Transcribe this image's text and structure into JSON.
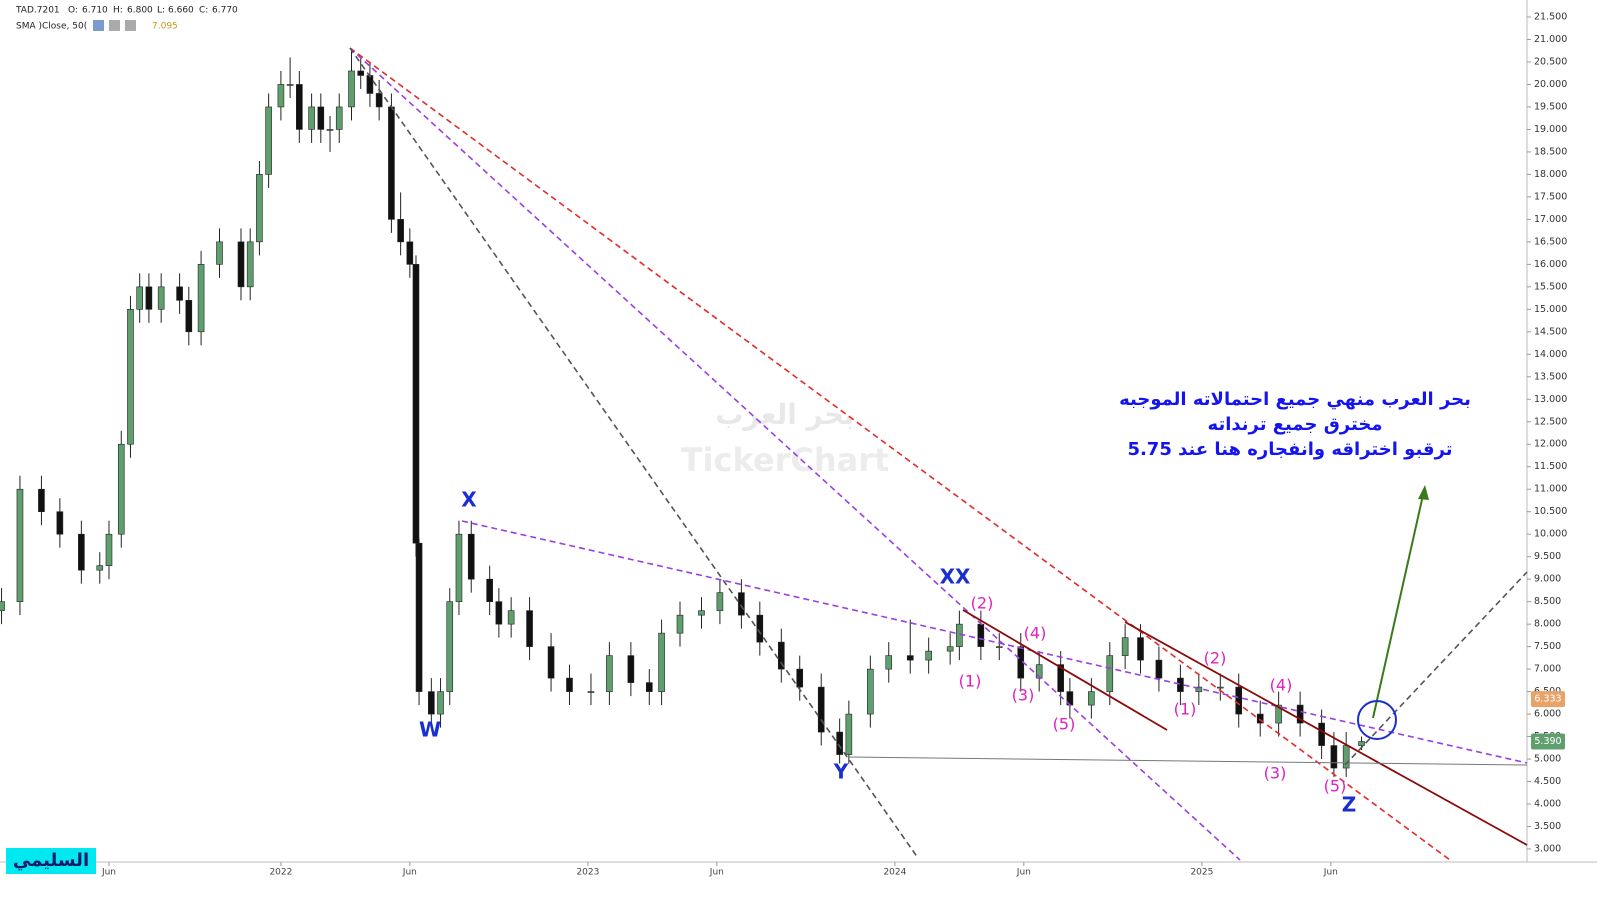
{
  "chart_data": {
    "type": "candlestick",
    "symbol": "TAD.7201",
    "ohlc_header": [
      {
        "label": "O:",
        "value": "6.710"
      },
      {
        "label": "H:",
        "value": "6.800"
      },
      {
        "label": "L:",
        "value": "6.660"
      },
      {
        "label": "C:",
        "value": "6.770"
      }
    ],
    "indicator": {
      "name": "SMA )Close, 50(",
      "value": "7.095"
    },
    "watermark": [
      "بحر العرب",
      "TickerChart"
    ],
    "signature": "السليمي",
    "up_color": "#5f9f6e",
    "down_color": "#111111",
    "xlim": [
      2021.085,
      2026.059
    ],
    "ylim": [
      3.0,
      21.5
    ],
    "xticks": [
      {
        "value": 2021.44,
        "label": "Jun"
      },
      2022,
      {
        "value": 2022.42,
        "label": "Jun"
      },
      2023,
      {
        "value": 2023.42,
        "label": "Jun"
      },
      2024,
      {
        "value": 2024.42,
        "label": "Jun"
      },
      2025,
      {
        "value": 2025.42,
        "label": "Jun"
      }
    ],
    "yticks": [
      {
        "value": 3.0,
        "label": "3.000"
      },
      {
        "value": 3.5,
        "label": "3.500"
      },
      {
        "value": 4.0,
        "label": "4.000"
      },
      {
        "value": 4.5,
        "label": "4.500"
      },
      {
        "value": 5.0,
        "label": "5.000"
      },
      {
        "value": 5.5,
        "label": "5.500"
      },
      {
        "value": 6.0,
        "label": "6.000"
      },
      {
        "value": 6.5,
        "label": "6.500"
      },
      {
        "value": 7.0,
        "label": "7.000"
      },
      {
        "value": 7.5,
        "label": "7.500"
      },
      {
        "value": 8.0,
        "label": "8.000"
      },
      {
        "value": 8.5,
        "label": "8.500"
      },
      {
        "value": 9.0,
        "label": "9.000"
      },
      {
        "value": 9.5,
        "label": "9.500"
      },
      {
        "value": 10.0,
        "label": "10.000"
      },
      {
        "value": 10.5,
        "label": "10.500"
      },
      {
        "value": 11.0,
        "label": "11.000"
      },
      {
        "value": 11.5,
        "label": "11.500"
      },
      {
        "value": 12.0,
        "label": "12.000"
      },
      {
        "value": 12.5,
        "label": "12.500"
      },
      {
        "value": 13.0,
        "label": "13.000"
      },
      {
        "value": 13.5,
        "label": "13.500"
      },
      {
        "value": 14.0,
        "label": "14.000"
      },
      {
        "value": 14.5,
        "label": "14.500"
      },
      {
        "value": 15.0,
        "label": "15.000"
      },
      {
        "value": 15.5,
        "label": "15.500"
      },
      {
        "value": 16.0,
        "label": "16.000"
      },
      {
        "value": 16.5,
        "label": "16.500"
      },
      {
        "value": 17.0,
        "label": "17.000"
      },
      {
        "value": 17.5,
        "label": "17.500"
      },
      {
        "value": 18.0,
        "label": "18.000"
      },
      {
        "value": 18.5,
        "label": "18.500"
      },
      {
        "value": 19.0,
        "label": "19.000"
      },
      {
        "value": 19.5,
        "label": "19.500"
      },
      {
        "value": 20.0,
        "label": "20.000"
      },
      {
        "value": 20.5,
        "label": "20.500"
      },
      {
        "value": 21.0,
        "label": "21.000"
      },
      {
        "value": 21.5,
        "label": "21.500"
      }
    ],
    "price_tags": [
      {
        "value": 6.333,
        "label": "6.333",
        "color": "#e8a36a"
      },
      {
        "value": 5.39,
        "label": "5.390",
        "color": "#5f9f6e"
      }
    ],
    "candles": [
      [
        2021.09,
        8.3,
        8.8,
        8.0,
        8.5
      ],
      [
        2021.15,
        8.5,
        11.3,
        8.2,
        11
      ],
      [
        2021.22,
        11,
        11.3,
        10.2,
        10.5
      ],
      [
        2021.28,
        10.5,
        10.8,
        9.7,
        10
      ],
      [
        2021.35,
        10,
        10.3,
        8.9,
        9.2
      ],
      [
        2021.41,
        9.2,
        9.6,
        8.9,
        9.3
      ],
      [
        2021.44,
        9.3,
        10.3,
        9.0,
        10
      ],
      [
        2021.48,
        10,
        12.3,
        9.7,
        12
      ],
      [
        2021.51,
        12,
        15.3,
        11.7,
        15
      ],
      [
        2021.54,
        15,
        15.8,
        14.7,
        15.5
      ],
      [
        2021.57,
        15.5,
        15.8,
        14.7,
        15
      ],
      [
        2021.61,
        15,
        15.8,
        14.7,
        15.5
      ],
      [
        2021.67,
        15.5,
        15.8,
        14.9,
        15.2
      ],
      [
        2021.7,
        15.2,
        15.5,
        14.2,
        14.5
      ],
      [
        2021.74,
        14.5,
        16.3,
        14.2,
        16
      ],
      [
        2021.8,
        16,
        16.8,
        15.7,
        16.5
      ],
      [
        2021.87,
        16.5,
        16.8,
        15.2,
        15.5
      ],
      [
        2021.9,
        15.5,
        16.8,
        15.2,
        16.5
      ],
      [
        2021.93,
        16.5,
        18.3,
        16.2,
        18
      ],
      [
        2021.96,
        18,
        19.8,
        17.7,
        19.5
      ],
      [
        2022.0,
        19.5,
        20.3,
        19.2,
        20
      ],
      [
        2022.03,
        20,
        20.6,
        19.7,
        20
      ],
      [
        2022.06,
        20,
        20.3,
        18.7,
        19
      ],
      [
        2022.1,
        19,
        19.8,
        18.7,
        19.5
      ],
      [
        2022.13,
        19.5,
        19.8,
        18.7,
        19
      ],
      [
        2022.16,
        19,
        19.3,
        18.5,
        19
      ],
      [
        2022.19,
        19,
        19.8,
        18.7,
        19.5
      ],
      [
        2022.23,
        19.5,
        20.8,
        19.2,
        20.3
      ],
      [
        2022.26,
        20.3,
        20.6,
        19.9,
        20.2
      ],
      [
        2022.29,
        20.2,
        20.5,
        19.5,
        19.8
      ],
      [
        2022.32,
        19.8,
        20.1,
        19.2,
        19.5
      ],
      [
        2022.36,
        19.5,
        19.8,
        16.7,
        17
      ],
      [
        2022.39,
        17,
        17.6,
        16.2,
        16.5
      ],
      [
        2022.42,
        16.5,
        16.8,
        15.7,
        16
      ],
      [
        2022.44,
        16,
        16.2,
        9.5,
        9.8
      ],
      [
        2022.45,
        9.8,
        9.9,
        6.2,
        6.5
      ],
      [
        2022.49,
        6.5,
        6.8,
        5.7,
        6
      ],
      [
        2022.52,
        6,
        6.8,
        5.7,
        6.5
      ],
      [
        2022.55,
        6.5,
        8.8,
        6.2,
        8.5
      ],
      [
        2022.58,
        8.5,
        10.3,
        8.2,
        10
      ],
      [
        2022.62,
        10,
        10.3,
        8.7,
        9
      ],
      [
        2022.68,
        9,
        9.3,
        8.2,
        8.5
      ],
      [
        2022.71,
        8.5,
        8.8,
        7.7,
        8
      ],
      [
        2022.75,
        8,
        8.6,
        7.7,
        8.3
      ],
      [
        2022.81,
        8.3,
        8.6,
        7.2,
        7.5
      ],
      [
        2022.88,
        7.5,
        7.8,
        6.5,
        6.8
      ],
      [
        2022.94,
        6.8,
        7.1,
        6.2,
        6.5
      ],
      [
        2023.01,
        6.5,
        6.9,
        6.2,
        6.5
      ],
      [
        2023.07,
        6.5,
        7.6,
        6.2,
        7.3
      ],
      [
        2023.14,
        7.3,
        7.6,
        6.4,
        6.7
      ],
      [
        2023.2,
        6.7,
        7.0,
        6.2,
        6.5
      ],
      [
        2023.24,
        6.5,
        8.1,
        6.2,
        7.8
      ],
      [
        2023.3,
        7.8,
        8.5,
        7.5,
        8.2
      ],
      [
        2023.37,
        8.2,
        8.6,
        7.9,
        8.3
      ],
      [
        2023.43,
        8.3,
        9.0,
        8.0,
        8.7
      ],
      [
        2023.5,
        8.7,
        9.0,
        7.9,
        8.2
      ],
      [
        2023.56,
        8.2,
        8.5,
        7.3,
        7.6
      ],
      [
        2023.63,
        7.6,
        7.9,
        6.7,
        7
      ],
      [
        2023.69,
        7,
        7.3,
        6.3,
        6.6
      ],
      [
        2023.76,
        6.6,
        6.9,
        5.3,
        5.6
      ],
      [
        2023.82,
        5.6,
        5.9,
        4.9,
        5.1
      ],
      [
        2023.85,
        5.1,
        6.3,
        4.9,
        6
      ],
      [
        2023.92,
        6,
        7.3,
        5.7,
        7
      ],
      [
        2023.98,
        7,
        7.6,
        6.7,
        7.3
      ],
      [
        2024.05,
        7.3,
        8.1,
        6.9,
        7.2
      ],
      [
        2024.11,
        7.2,
        7.7,
        6.9,
        7.4
      ],
      [
        2024.18,
        7.4,
        7.8,
        7.1,
        7.5
      ],
      [
        2024.21,
        7.5,
        8.3,
        7.2,
        8
      ],
      [
        2024.28,
        8,
        8.3,
        7.2,
        7.5
      ],
      [
        2024.34,
        7.5,
        7.8,
        7.2,
        7.5
      ],
      [
        2024.41,
        7.5,
        7.8,
        6.5,
        6.8
      ],
      [
        2024.47,
        6.8,
        7.4,
        6.5,
        7.1
      ],
      [
        2024.54,
        7.1,
        7.4,
        6.2,
        6.5
      ],
      [
        2024.57,
        6.5,
        6.8,
        5.9,
        6.2
      ],
      [
        2024.64,
        6.2,
        6.8,
        5.9,
        6.5
      ],
      [
        2024.7,
        6.5,
        7.6,
        6.2,
        7.3
      ],
      [
        2024.75,
        7.3,
        8.0,
        7.0,
        7.7
      ],
      [
        2024.8,
        7.7,
        8.0,
        6.9,
        7.2
      ],
      [
        2024.86,
        7.2,
        7.5,
        6.5,
        6.8
      ],
      [
        2024.93,
        6.8,
        7.1,
        6.2,
        6.5
      ],
      [
        2024.99,
        6.5,
        6.9,
        6.2,
        6.6
      ],
      [
        2025.06,
        6.6,
        6.9,
        6.3,
        6.6
      ],
      [
        2025.12,
        6.6,
        6.9,
        5.7,
        6
      ],
      [
        2025.19,
        6,
        6.3,
        5.5,
        5.8
      ],
      [
        2025.25,
        5.8,
        6.5,
        5.5,
        6.2
      ],
      [
        2025.32,
        6.2,
        6.5,
        5.5,
        5.8
      ],
      [
        2025.39,
        5.8,
        6.1,
        5.0,
        5.3
      ],
      [
        2025.43,
        5.3,
        5.6,
        4.6,
        4.8
      ],
      [
        2025.47,
        4.8,
        5.6,
        4.6,
        5.3
      ],
      [
        2025.52,
        5.3,
        5.5,
        5.2,
        5.39
      ]
    ],
    "wave_labels": [
      "W",
      "X",
      "Y",
      "XX",
      "Z"
    ],
    "subwave_labels": [
      "(2)",
      "(4)",
      "(1)",
      "(3)",
      "(5)",
      "(2)",
      "(4)",
      "(1)",
      "(3)",
      "(5)"
    ],
    "annotation": [
      "بحر العرب منهي جميع احتمالاته الموجبه",
      "مخترق جميع ترنداته",
      "ترقبو اختراقه وانفجاره هنا عند 5.75"
    ]
  }
}
